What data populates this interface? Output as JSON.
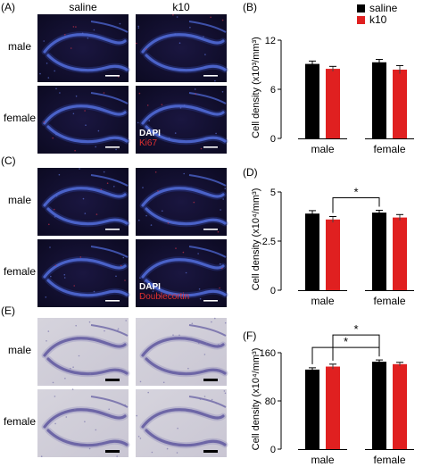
{
  "panels_images": [
    {
      "letter": "(A)",
      "columns": [
        "saline",
        "k10"
      ],
      "rows": [
        "male",
        "female"
      ],
      "stain": "fluorescent",
      "legend": [
        {
          "text": "DAPI",
          "color": "#ffffff"
        },
        {
          "text": "Ki67",
          "color": "#e03030"
        }
      ]
    },
    {
      "letter": "(C)",
      "rows": [
        "male",
        "female"
      ],
      "stain": "fluorescent",
      "legend": [
        {
          "text": "DAPI",
          "color": "#ffffff"
        },
        {
          "text": "Doublecortin",
          "color": "#e03030"
        }
      ]
    },
    {
      "letter": "(E)",
      "rows": [
        "male",
        "female"
      ],
      "stain": "nissl",
      "legend": []
    }
  ],
  "legend": {
    "items": [
      {
        "label": "saline",
        "color": "#000000"
      },
      {
        "label": "k10",
        "color": "#e02020"
      }
    ],
    "placement": "top-right"
  },
  "chart_data": [
    {
      "letter": "(B)",
      "type": "bar",
      "categories": [
        "male",
        "female"
      ],
      "series": [
        {
          "name": "saline",
          "values": [
            9.1,
            9.3
          ],
          "errors": [
            0.35,
            0.35
          ],
          "color": "#000000"
        },
        {
          "name": "k10",
          "values": [
            8.5,
            8.4
          ],
          "errors": [
            0.3,
            0.5
          ],
          "color": "#e02020"
        }
      ],
      "ylabel": "Cell density (x10³/mm³)",
      "ylim": [
        0,
        12
      ],
      "yticks": [
        "0",
        "6",
        "12"
      ],
      "yticks_values": [
        0,
        6,
        12
      ],
      "grid": false,
      "significance": []
    },
    {
      "letter": "(D)",
      "type": "bar",
      "categories": [
        "male",
        "female"
      ],
      "series": [
        {
          "name": "saline",
          "values": [
            3.9,
            3.95
          ],
          "errors": [
            0.15,
            0.12
          ],
          "color": "#000000"
        },
        {
          "name": "k10",
          "values": [
            3.6,
            3.7
          ],
          "errors": [
            0.15,
            0.15
          ],
          "color": "#e02020"
        }
      ],
      "ylabel": "Cell density (x10⁴/mm³)",
      "ylim": [
        0,
        5
      ],
      "yticks": [
        "0",
        "2.5",
        "5"
      ],
      "yticks_values": [
        0,
        2.5,
        5
      ],
      "grid": false,
      "significance": [
        {
          "from": [
            0,
            1
          ],
          "to": [
            1,
            0
          ],
          "label": "*"
        }
      ]
    },
    {
      "letter": "(F)",
      "type": "bar",
      "categories": [
        "male",
        "female"
      ],
      "series": [
        {
          "name": "saline",
          "values": [
            132,
            145
          ],
          "errors": [
            3,
            3
          ],
          "color": "#000000"
        },
        {
          "name": "k10",
          "values": [
            137,
            141
          ],
          "errors": [
            4,
            3
          ],
          "color": "#e02020"
        }
      ],
      "ylabel": "Cell density (x10⁴/mm³)",
      "ylim": [
        0,
        160
      ],
      "yticks": [
        "0",
        "80",
        "160"
      ],
      "yticks_values": [
        0,
        80,
        160
      ],
      "grid": false,
      "significance": [
        {
          "from": [
            0,
            0
          ],
          "to": [
            1,
            0
          ],
          "label": "*"
        },
        {
          "from": [
            0,
            1
          ],
          "to": [
            1,
            0
          ],
          "label": "*"
        }
      ]
    }
  ]
}
